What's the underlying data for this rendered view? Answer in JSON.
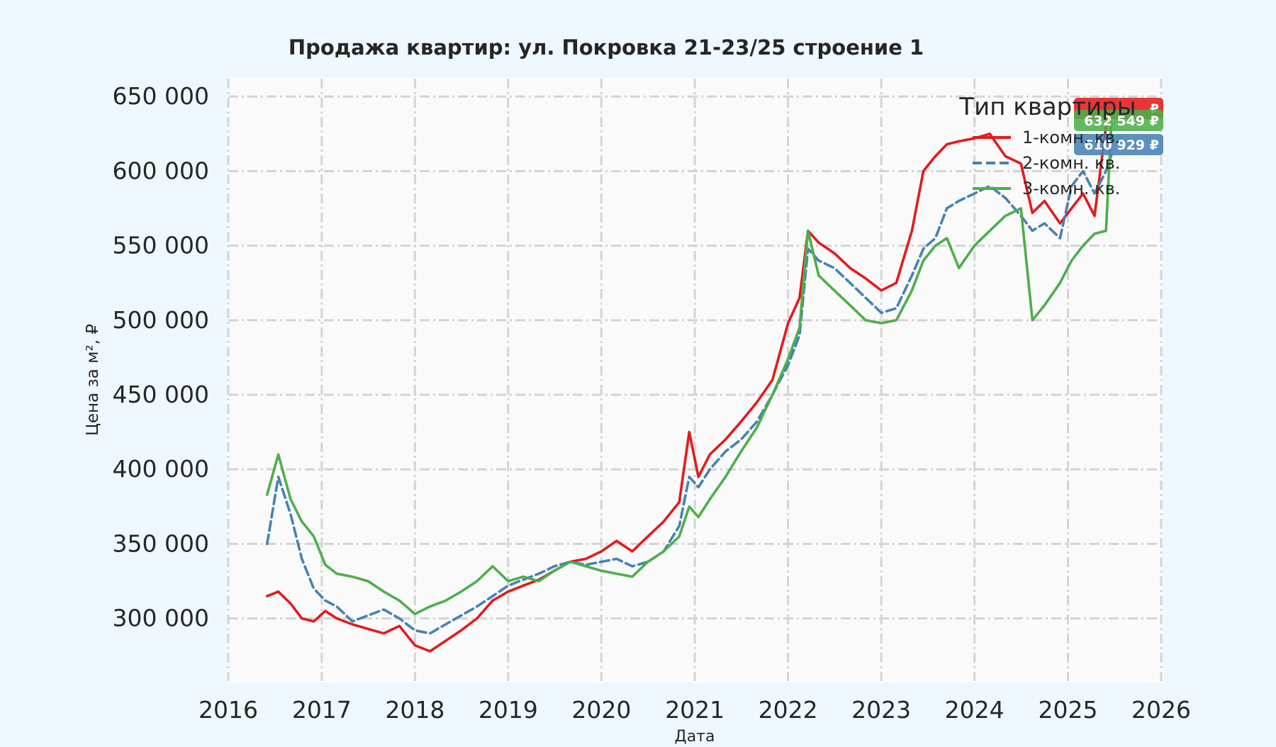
{
  "chart_data": {
    "type": "line",
    "title": "Продажа квартир: ул. Покровка 21-23/25 строение 1",
    "xlabel": "Дата",
    "ylabel": "Цена за м², ₽",
    "xlim": [
      "2016-01-01",
      "2026-01-01"
    ],
    "ylim": [
      258000,
      662000
    ],
    "x_ticks": [
      "2016",
      "2017",
      "2018",
      "2019",
      "2020",
      "2021",
      "2022",
      "2023",
      "2024",
      "2025",
      "2026"
    ],
    "y_ticks": [
      300000,
      350000,
      400000,
      450000,
      500000,
      550000,
      600000,
      650000
    ],
    "y_tick_labels": [
      "300 000",
      "350 000",
      "400 000",
      "450 000",
      "500 000",
      "550 000",
      "600 000",
      "650 000"
    ],
    "grid": true,
    "legend": {
      "title": "Тип квартиры",
      "position": "top-right"
    },
    "series": [
      {
        "name": "1-комн. кв.",
        "color": "#e41a1c",
        "dash": "solid",
        "end_label": "₽",
        "x": [
          "2016-06-01",
          "2016-07-15",
          "2016-09-01",
          "2016-10-15",
          "2016-12-01",
          "2017-01-15",
          "2017-03-01",
          "2017-05-01",
          "2017-07-01",
          "2017-09-01",
          "2017-11-01",
          "2018-01-01",
          "2018-03-01",
          "2018-05-01",
          "2018-07-01",
          "2018-09-01",
          "2018-11-01",
          "2019-01-01",
          "2019-03-01",
          "2019-05-01",
          "2019-07-01",
          "2019-09-01",
          "2019-11-01",
          "2020-01-01",
          "2020-03-01",
          "2020-05-01",
          "2020-07-01",
          "2020-09-01",
          "2020-11-01",
          "2020-12-10",
          "2021-01-15",
          "2021-03-01",
          "2021-05-01",
          "2021-07-01",
          "2021-09-01",
          "2021-11-01",
          "2022-01-01",
          "2022-02-15",
          "2022-03-20",
          "2022-05-01",
          "2022-07-01",
          "2022-09-01",
          "2022-11-01",
          "2023-01-01",
          "2023-03-01",
          "2023-05-01",
          "2023-06-15",
          "2023-08-01",
          "2023-09-15",
          "2023-11-01",
          "2024-01-01",
          "2024-03-01",
          "2024-05-01",
          "2024-07-01",
          "2024-08-15",
          "2024-10-01",
          "2024-12-01",
          "2025-01-15",
          "2025-03-01",
          "2025-04-15",
          "2025-05-30",
          "2025-06-20"
        ],
        "values": [
          315000,
          318000,
          310000,
          300000,
          298000,
          305000,
          300000,
          296000,
          293000,
          290000,
          295000,
          282000,
          278000,
          285000,
          292000,
          300000,
          312000,
          318000,
          322000,
          326000,
          332000,
          338000,
          340000,
          345000,
          352000,
          345000,
          355000,
          365000,
          378000,
          425000,
          395000,
          410000,
          420000,
          432000,
          445000,
          460000,
          498000,
          515000,
          560000,
          552000,
          545000,
          535000,
          528000,
          520000,
          525000,
          560000,
          600000,
          610000,
          618000,
          620000,
          622000,
          625000,
          610000,
          605000,
          572000,
          580000,
          565000,
          575000,
          585000,
          570000,
          630000,
          640000
        ]
      },
      {
        "name": "2-комн. кв.",
        "color": "#4682b4",
        "dash": "dashed",
        "end_label": "610 929 ₽",
        "x": [
          "2016-06-01",
          "2016-07-15",
          "2016-09-01",
          "2016-10-15",
          "2016-12-01",
          "2017-01-15",
          "2017-03-01",
          "2017-05-01",
          "2017-07-01",
          "2017-09-01",
          "2017-11-01",
          "2018-01-01",
          "2018-03-01",
          "2018-05-01",
          "2018-07-01",
          "2018-09-01",
          "2018-11-01",
          "2019-01-01",
          "2019-03-01",
          "2019-05-01",
          "2019-07-01",
          "2019-09-01",
          "2019-11-01",
          "2020-01-01",
          "2020-03-01",
          "2020-05-01",
          "2020-07-01",
          "2020-09-01",
          "2020-11-01",
          "2020-12-10",
          "2021-01-15",
          "2021-03-01",
          "2021-05-01",
          "2021-07-01",
          "2021-09-01",
          "2021-11-01",
          "2022-01-01",
          "2022-02-15",
          "2022-03-20",
          "2022-05-01",
          "2022-07-01",
          "2022-09-01",
          "2022-11-01",
          "2023-01-01",
          "2023-03-01",
          "2023-05-01",
          "2023-06-15",
          "2023-08-01",
          "2023-09-15",
          "2023-11-01",
          "2024-01-01",
          "2024-03-01",
          "2024-05-01",
          "2024-07-01",
          "2024-08-15",
          "2024-10-01",
          "2024-12-01",
          "2025-01-15",
          "2025-03-01",
          "2025-04-15",
          "2025-05-30",
          "2025-06-20"
        ],
        "values": [
          350000,
          395000,
          370000,
          340000,
          320000,
          312000,
          308000,
          298000,
          302000,
          306000,
          300000,
          292000,
          290000,
          296000,
          302000,
          308000,
          315000,
          322000,
          326000,
          330000,
          335000,
          338000,
          336000,
          338000,
          340000,
          335000,
          338000,
          345000,
          362000,
          395000,
          388000,
          400000,
          412000,
          420000,
          432000,
          450000,
          470000,
          490000,
          548000,
          540000,
          535000,
          525000,
          515000,
          505000,
          508000,
          530000,
          548000,
          555000,
          575000,
          580000,
          585000,
          590000,
          582000,
          570000,
          560000,
          565000,
          555000,
          590000,
          600000,
          585000,
          600000,
          610929
        ]
      },
      {
        "name": "3-комн. кв.",
        "color": "#4daf4a",
        "dash": "solid",
        "end_label": "632 549 ₽",
        "x": [
          "2016-06-01",
          "2016-07-15",
          "2016-09-01",
          "2016-10-15",
          "2016-12-01",
          "2017-01-15",
          "2017-03-01",
          "2017-05-01",
          "2017-07-01",
          "2017-09-01",
          "2017-11-01",
          "2018-01-01",
          "2018-03-01",
          "2018-05-01",
          "2018-07-01",
          "2018-09-01",
          "2018-11-01",
          "2019-01-01",
          "2019-03-01",
          "2019-05-01",
          "2019-07-01",
          "2019-09-01",
          "2019-11-01",
          "2020-01-01",
          "2020-03-01",
          "2020-05-01",
          "2020-07-01",
          "2020-09-01",
          "2020-11-01",
          "2020-12-10",
          "2021-01-15",
          "2021-03-01",
          "2021-05-01",
          "2021-07-01",
          "2021-09-01",
          "2021-11-01",
          "2022-01-01",
          "2022-02-15",
          "2022-03-20",
          "2022-05-01",
          "2022-07-01",
          "2022-09-01",
          "2022-11-01",
          "2023-01-01",
          "2023-03-01",
          "2023-05-01",
          "2023-06-15",
          "2023-08-01",
          "2023-09-15",
          "2023-11-01",
          "2024-01-01",
          "2024-03-01",
          "2024-05-01",
          "2024-07-01",
          "2024-08-15",
          "2024-10-01",
          "2024-12-01",
          "2025-01-15",
          "2025-03-01",
          "2025-04-15",
          "2025-05-30",
          "2025-06-20"
        ],
        "values": [
          383000,
          410000,
          380000,
          365000,
          355000,
          336000,
          330000,
          328000,
          325000,
          318000,
          312000,
          303000,
          308000,
          312000,
          318000,
          325000,
          335000,
          325000,
          328000,
          325000,
          332000,
          338000,
          335000,
          332000,
          330000,
          328000,
          338000,
          345000,
          355000,
          375000,
          368000,
          380000,
          395000,
          412000,
          428000,
          450000,
          474000,
          495000,
          560000,
          530000,
          520000,
          510000,
          500000,
          498000,
          500000,
          520000,
          540000,
          550000,
          555000,
          535000,
          550000,
          560000,
          570000,
          575000,
          500000,
          510000,
          525000,
          540000,
          550000,
          558000,
          560000,
          632549
        ]
      }
    ]
  }
}
